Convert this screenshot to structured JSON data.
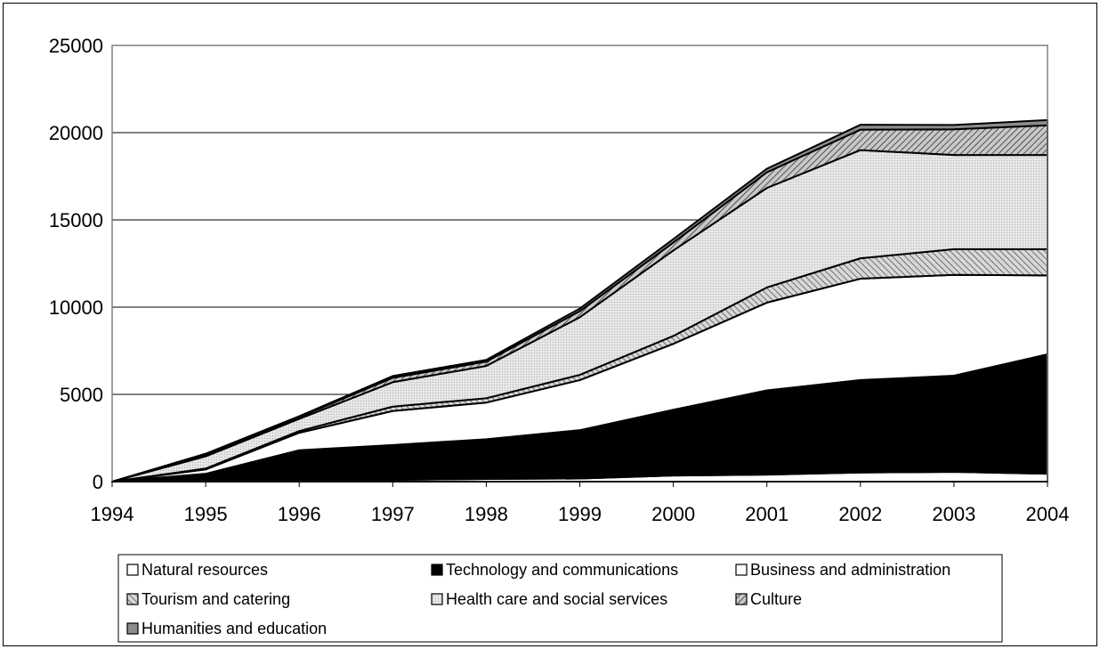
{
  "chart_data": {
    "type": "area",
    "stacked": true,
    "title": "",
    "xlabel": "",
    "ylabel": "",
    "x": [
      "1994",
      "1995",
      "1996",
      "1997",
      "1998",
      "1999",
      "2000",
      "2001",
      "2002",
      "2003",
      "2004"
    ],
    "ylim": [
      0,
      25000
    ],
    "yticks": [
      "0",
      "5000",
      "10000",
      "15000",
      "20000",
      "25000"
    ],
    "grid": true,
    "legend_position": "bottom",
    "series": [
      {
        "name": "Natural resources",
        "fill": "white",
        "values": [
          0,
          0,
          0,
          100,
          150,
          180,
          350,
          400,
          520,
          560,
          450
        ]
      },
      {
        "name": "Technology and communications",
        "fill": "black",
        "values": [
          0,
          450,
          1800,
          2000,
          2280,
          2770,
          3770,
          4830,
          5300,
          5510,
          6850
        ]
      },
      {
        "name": "Business and administration",
        "fill": "white",
        "values": [
          0,
          250,
          1000,
          1950,
          2100,
          2870,
          3780,
          5030,
          5810,
          5780,
          4520
        ]
      },
      {
        "name": "Tourism and catering",
        "fill": "hatch-up",
        "values": [
          0,
          50,
          100,
          250,
          250,
          300,
          450,
          870,
          1170,
          1470,
          1500
        ]
      },
      {
        "name": "Health care and social services",
        "fill": "dots",
        "values": [
          0,
          700,
          700,
          1400,
          1850,
          3300,
          4900,
          5700,
          6200,
          5400,
          5400
        ]
      },
      {
        "name": "Culture",
        "fill": "hatch-down",
        "values": [
          0,
          100,
          100,
          250,
          250,
          350,
          450,
          900,
          1170,
          1470,
          1700
        ]
      },
      {
        "name": "Humanities and education",
        "fill": "gray",
        "values": [
          0,
          50,
          50,
          100,
          100,
          150,
          200,
          200,
          280,
          250,
          300
        ]
      }
    ]
  }
}
